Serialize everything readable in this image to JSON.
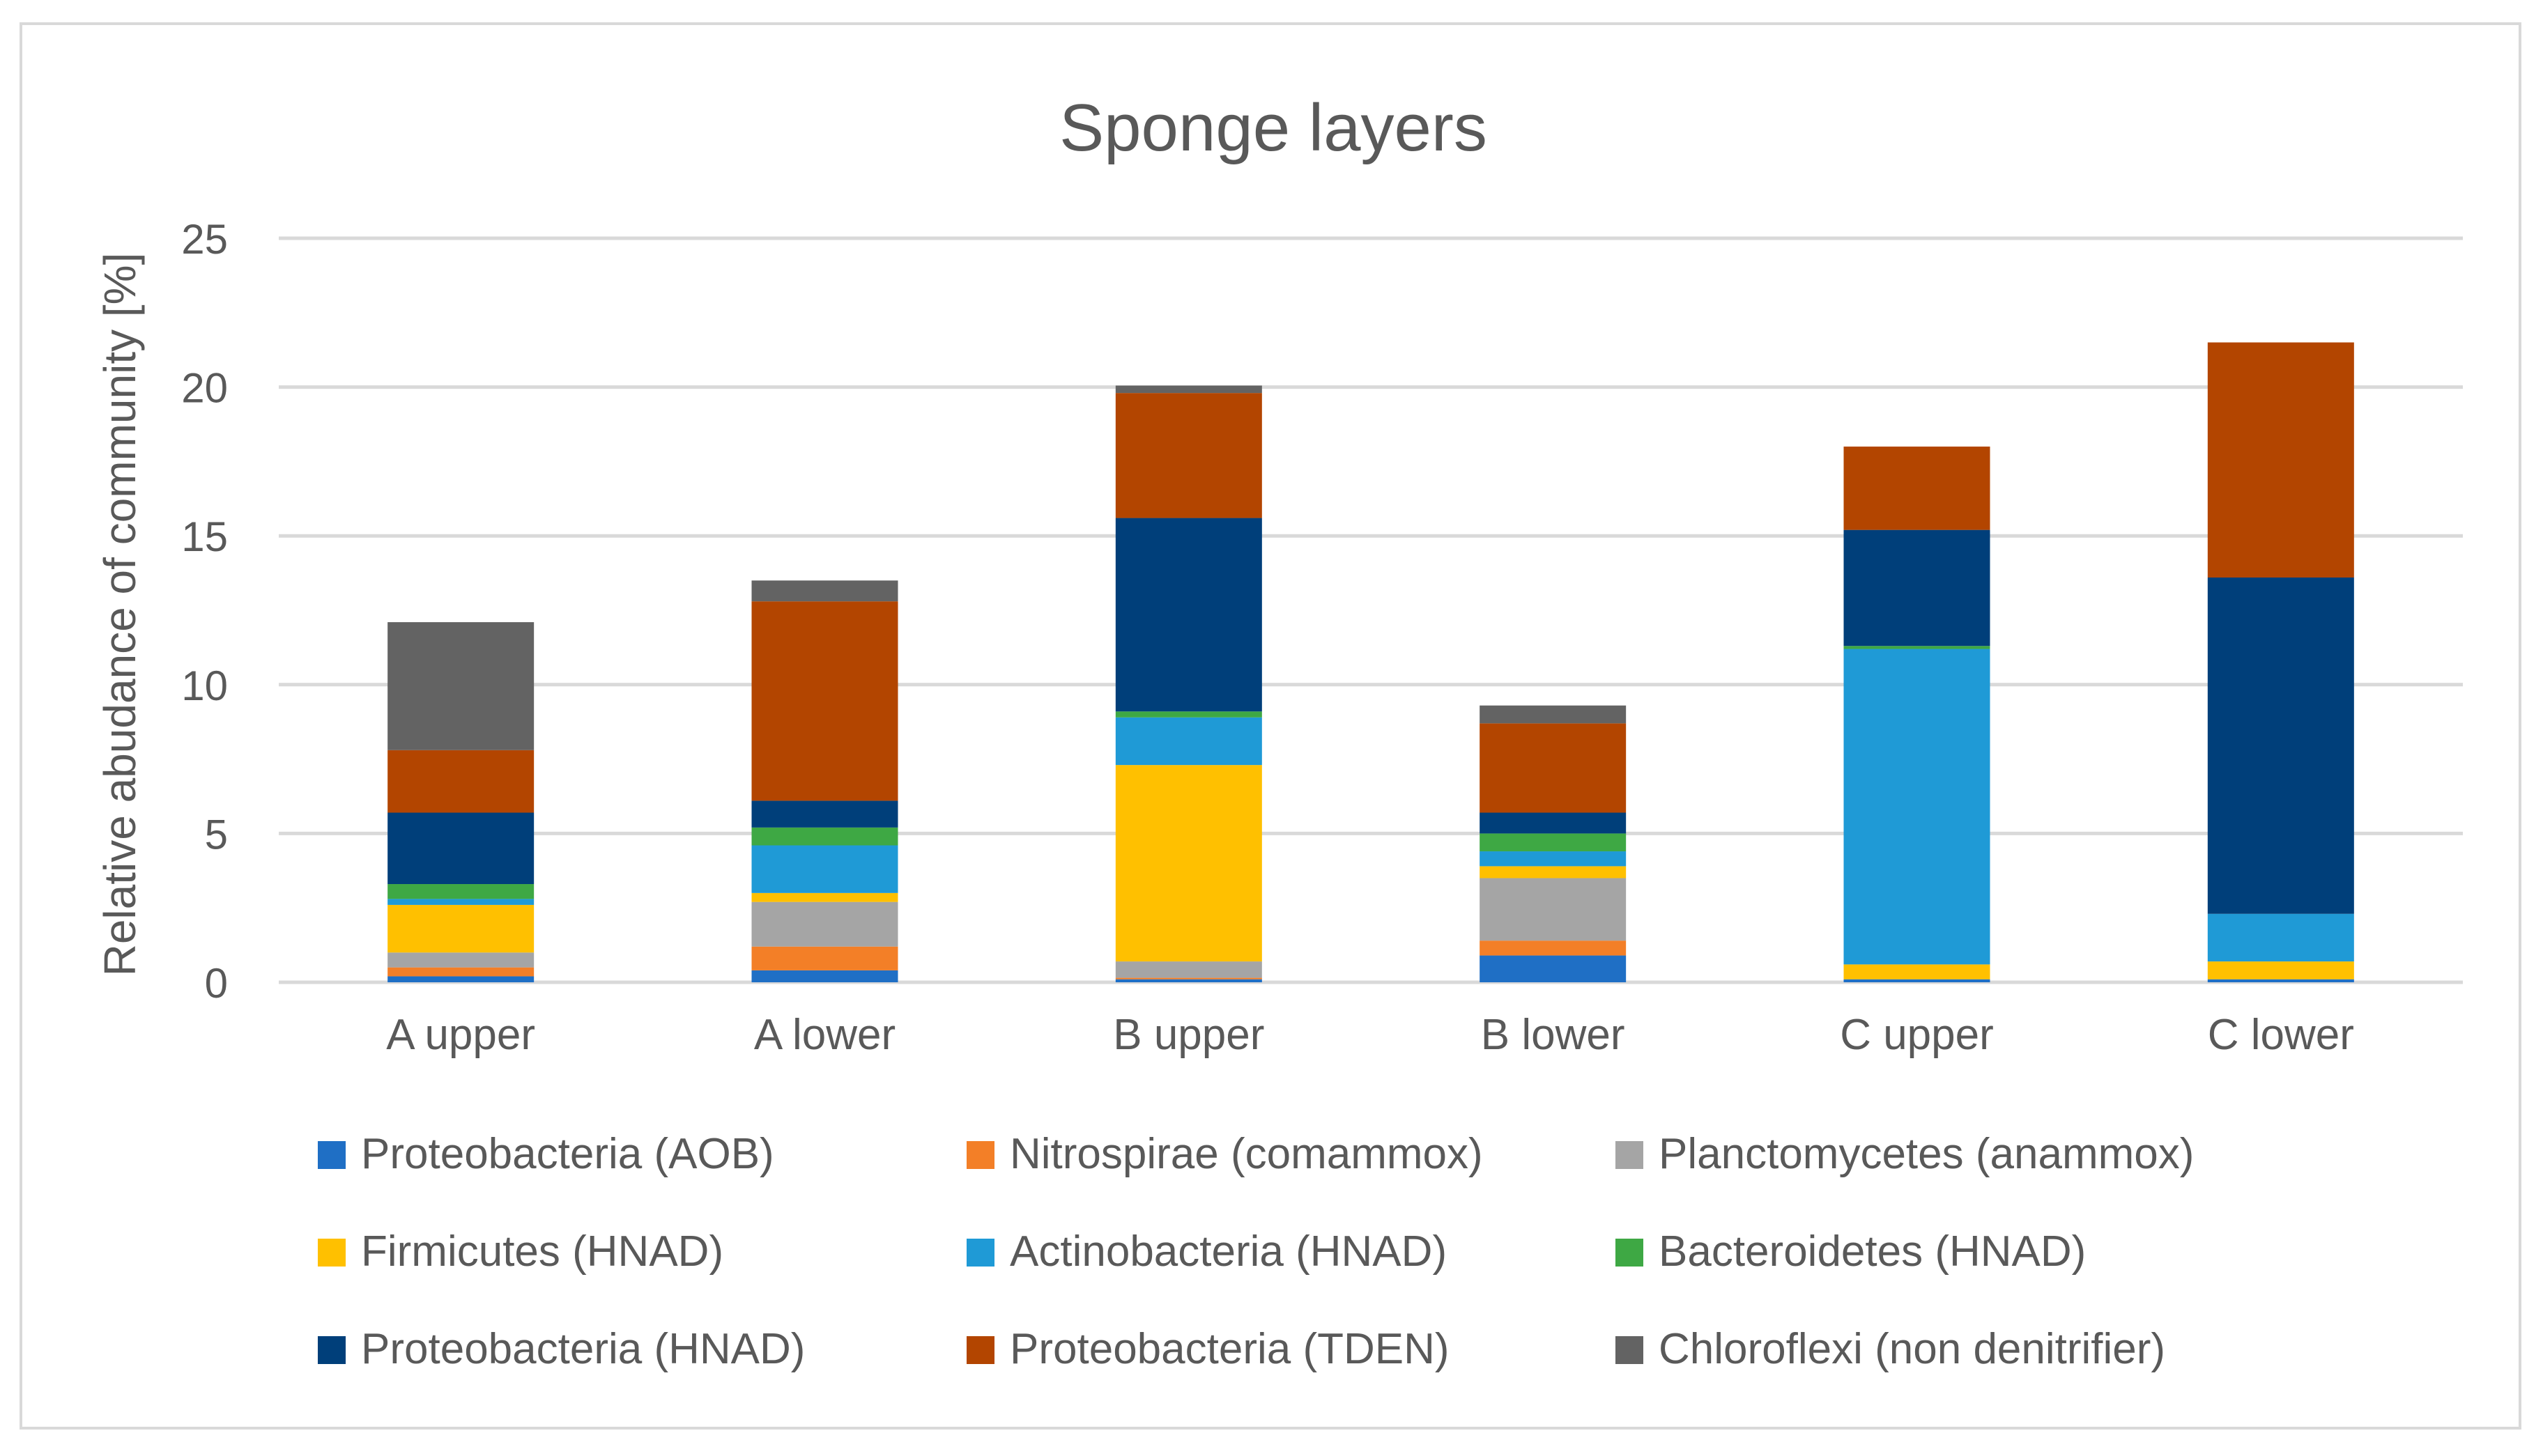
{
  "chart_data": {
    "type": "bar",
    "stacked": true,
    "title": "Sponge layers",
    "xlabel": "",
    "ylabel": "Relative abudance of community [%]",
    "ylim": [
      0,
      25
    ],
    "yticks": [
      "0",
      "5",
      "10",
      "15",
      "20",
      "25"
    ],
    "grid": true,
    "legend_position": "bottom",
    "categories": [
      "A upper",
      "A lower",
      "B upper",
      "B lower",
      "C upper",
      "C lower"
    ],
    "series": [
      {
        "name": "Proteobacteria (AOB)",
        "color": "#1f6fc5",
        "values": [
          0.2,
          0.4,
          0.1,
          0.9,
          0.1,
          0.1
        ]
      },
      {
        "name": "Nitrospirae (comammox)",
        "color": "#f37f27",
        "values": [
          0.3,
          0.8,
          0.05,
          0.5,
          0.0,
          0.0
        ]
      },
      {
        "name": "Planctomycetes (anammox)",
        "color": "#a5a5a5",
        "values": [
          0.5,
          1.5,
          0.55,
          2.1,
          0.0,
          0.0
        ]
      },
      {
        "name": "Firmicutes (HNAD)",
        "color": "#ffc000",
        "values": [
          1.6,
          0.3,
          6.6,
          0.4,
          0.5,
          0.6
        ]
      },
      {
        "name": "Actinobacteria (HNAD)",
        "color": "#1f9ad6",
        "values": [
          0.2,
          1.6,
          1.6,
          0.5,
          10.6,
          1.6
        ]
      },
      {
        "name": "Bacteroidetes (HNAD)",
        "color": "#3ea844",
        "values": [
          0.5,
          0.6,
          0.2,
          0.6,
          0.1,
          0.0
        ]
      },
      {
        "name": "Proteobacteria (HNAD)",
        "color": "#003f7a",
        "values": [
          2.4,
          0.9,
          6.5,
          0.7,
          3.9,
          11.3
        ]
      },
      {
        "name": "Proteobacteria (TDEN)",
        "color": "#b34500",
        "values": [
          2.1,
          6.7,
          4.2,
          3.0,
          2.8,
          7.9
        ]
      },
      {
        "name": "Chloroflexi (non denitrifier)",
        "color": "#636363",
        "values": [
          4.3,
          0.7,
          0.25,
          0.6,
          0.0,
          0.0
        ]
      }
    ]
  },
  "colors": {
    "gridline": "#d9d9d9",
    "text": "#595959",
    "border": "#d9d9d9"
  }
}
